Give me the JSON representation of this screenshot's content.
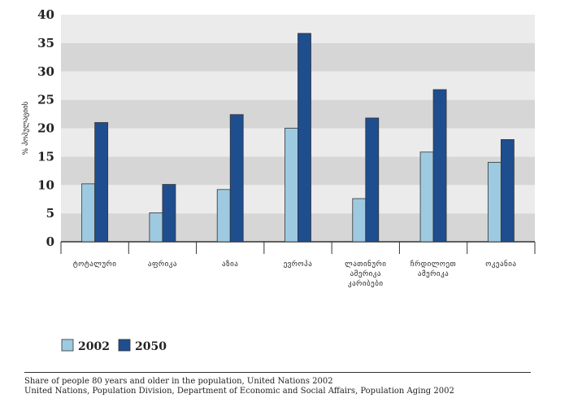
{
  "chart_data": {
    "type": "bar",
    "ylabel": "% პოპულაციის",
    "ylim": [
      0,
      40
    ],
    "yticks": [
      0,
      5,
      10,
      15,
      20,
      25,
      30,
      35,
      40
    ],
    "categories": [
      [
        "ტოტალური"
      ],
      [
        "აფრიკა"
      ],
      [
        "აზია"
      ],
      [
        "ევროპა"
      ],
      [
        "ლათინური",
        "ამერიკა",
        "კარიბები"
      ],
      [
        "ჩრდილოეთ",
        "ამერიკა"
      ],
      [
        "ოკეანია"
      ]
    ],
    "series": [
      {
        "name": "2002",
        "values": [
          10.2,
          5.1,
          9.2,
          20.0,
          7.6,
          15.8,
          14.0
        ]
      },
      {
        "name": "2050",
        "values": [
          21.0,
          10.1,
          22.4,
          36.7,
          21.8,
          26.8,
          18.0
        ]
      }
    ],
    "legend_position": "bottom-left",
    "colors": {
      "2002": "#9ecae1",
      "2050": "#1f4e8f",
      "band_light": "#ebebeb",
      "band_dark": "#d6d6d6"
    }
  },
  "caption": {
    "line1": "Share of people 80 years and older in the population, United Nations 2002",
    "line2": "United Nations, Population Division, Department of Economic and Social Affairs, Population Aging 2002"
  }
}
